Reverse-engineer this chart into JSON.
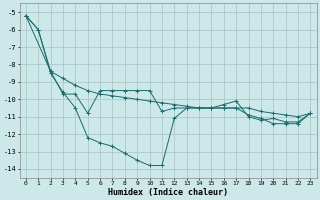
{
  "xlabel": "Humidex (Indice chaleur)",
  "background_color": "#cde8e8",
  "grid_color": "#adc8c8",
  "line_color": "#1a6b6b",
  "xlim": [
    -0.5,
    23.5
  ],
  "ylim": [
    -14.5,
    -4.5
  ],
  "yticks": [
    -14,
    -13,
    -12,
    -11,
    -10,
    -9,
    -8,
    -7,
    -6,
    -5
  ],
  "xticks": [
    0,
    1,
    2,
    3,
    4,
    5,
    6,
    7,
    8,
    9,
    10,
    11,
    12,
    13,
    14,
    15,
    16,
    17,
    18,
    19,
    20,
    21,
    22,
    23
  ],
  "series": [
    {
      "x": [
        0,
        1,
        2,
        3,
        4,
        5,
        6,
        7,
        8,
        9,
        10,
        11,
        12,
        13,
        14,
        15,
        16,
        17,
        18,
        19,
        20,
        21,
        22,
        23
      ],
      "y": [
        -5.2,
        -6.0,
        -8.5,
        -9.6,
        -10.5,
        -12.2,
        -12.5,
        -12.7,
        -13.1,
        -13.5,
        -13.8,
        -13.8,
        -11.1,
        -10.5,
        -10.5,
        -10.5,
        -10.5,
        -10.5,
        -10.9,
        -11.1,
        -11.4,
        -11.4,
        -11.4,
        -10.8
      ]
    },
    {
      "x": [
        0,
        2,
        3,
        4,
        5,
        6,
        7,
        8,
        9,
        10,
        11,
        12,
        13,
        14,
        15,
        16,
        17,
        18,
        19,
        20,
        21,
        22,
        23
      ],
      "y": [
        -5.2,
        -8.4,
        -8.8,
        -9.2,
        -9.5,
        -9.7,
        -9.8,
        -9.9,
        -10.0,
        -10.1,
        -10.2,
        -10.3,
        -10.4,
        -10.5,
        -10.5,
        -10.5,
        -10.5,
        -10.5,
        -10.7,
        -10.8,
        -10.9,
        -11.0,
        -10.8
      ]
    },
    {
      "x": [
        0,
        1,
        2,
        3,
        4,
        5,
        6,
        7,
        8,
        9,
        10,
        11,
        12,
        13,
        14,
        15,
        16,
        17,
        18,
        19,
        20,
        21,
        22,
        23
      ],
      "y": [
        -5.2,
        -6.0,
        -8.4,
        -9.7,
        -9.7,
        -10.8,
        -9.5,
        -9.5,
        -9.5,
        -9.5,
        -9.5,
        -10.7,
        -10.5,
        -10.5,
        -10.5,
        -10.5,
        -10.3,
        -10.1,
        -11.0,
        -11.2,
        -11.1,
        -11.3,
        -11.3,
        -10.8
      ]
    }
  ]
}
